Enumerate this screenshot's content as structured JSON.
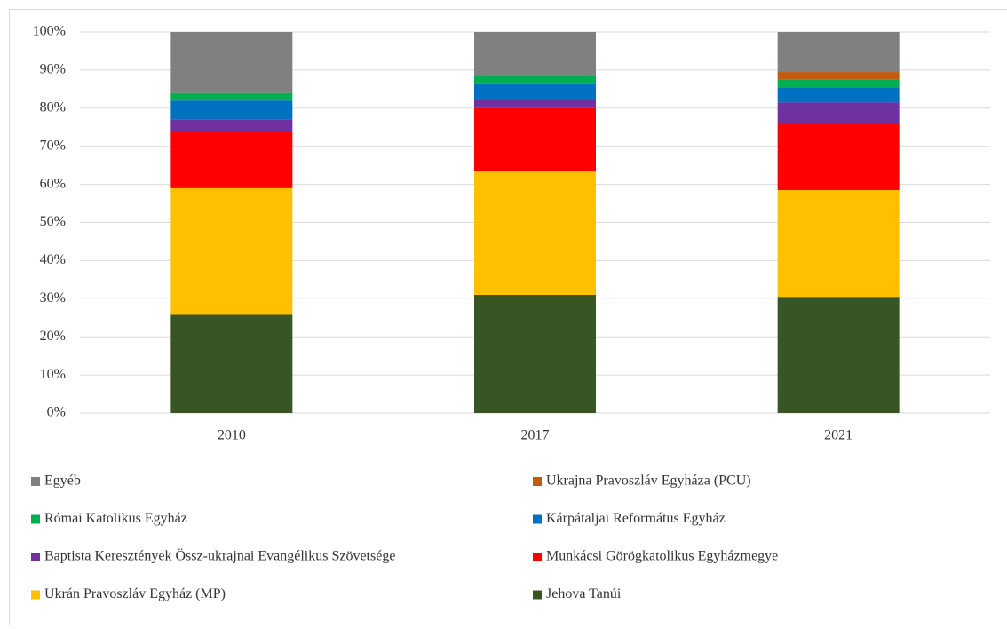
{
  "chart_data": {
    "type": "stacked_bar",
    "categories": [
      "2010",
      "2017",
      "2021"
    ],
    "series": [
      {
        "name": "Jehova Tanúi",
        "color": "#375623",
        "values": [
          26,
          31,
          30.5
        ]
      },
      {
        "name": "Ukrán Pravoszláv Egyház (MP)",
        "color": "#ffc000",
        "values": [
          33,
          32.5,
          28
        ]
      },
      {
        "name": "Munkácsi Görögkatolikus Egyházmegye",
        "color": "#ff0000",
        "values": [
          15,
          16.5,
          17.5
        ]
      },
      {
        "name": "Baptista Keresztények Össz-ukrajnai Evangélikus Szövetsége",
        "color": "#7030a0",
        "values": [
          3,
          2.5,
          5.5
        ]
      },
      {
        "name": "Kárpátaljai Református Egyház",
        "color": "#0070c0",
        "values": [
          5,
          4,
          4
        ]
      },
      {
        "name": "Római Katolikus Egyház",
        "color": "#00b050",
        "values": [
          2,
          2,
          2
        ]
      },
      {
        "name": "Ukrajna Pravoszláv Egyháza (PCU)",
        "color": "#c55a11",
        "values": [
          0,
          0,
          2
        ]
      },
      {
        "name": "Egyéb",
        "color": "#808080",
        "values": [
          16,
          11.5,
          10.5
        ]
      }
    ],
    "ylim": [
      0,
      100
    ],
    "yticks": [
      {
        "value": 0,
        "label": "0%"
      },
      {
        "value": 10,
        "label": "10%"
      },
      {
        "value": 20,
        "label": "20%"
      },
      {
        "value": 30,
        "label": "30%"
      },
      {
        "value": 40,
        "label": "40%"
      },
      {
        "value": 50,
        "label": "50%"
      },
      {
        "value": 60,
        "label": "60%"
      },
      {
        "value": 70,
        "label": "70%"
      },
      {
        "value": 80,
        "label": "80%"
      },
      {
        "value": 90,
        "label": "90%"
      },
      {
        "value": 100,
        "label": "100%"
      }
    ],
    "grid": true,
    "legend": "bottom"
  }
}
